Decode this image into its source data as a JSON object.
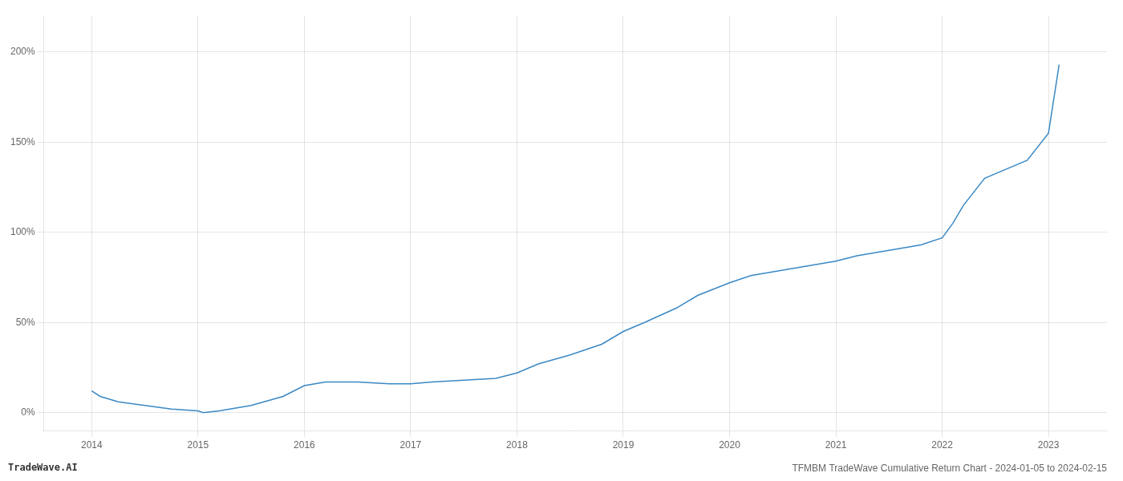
{
  "chart_data": {
    "type": "line",
    "title": "TFMBM TradeWave Cumulative Return Chart - 2024-01-05 to 2024-02-15",
    "annotations": [
      "TradeWave.AI"
    ],
    "color": "#3a88c4",
    "x": [
      2014.0,
      2014.08,
      2014.25,
      2014.5,
      2014.75,
      2015.0,
      2015.05,
      2015.2,
      2015.5,
      2015.8,
      2016.0,
      2016.2,
      2016.5,
      2016.8,
      2017.0,
      2017.2,
      2017.5,
      2017.8,
      2018.0,
      2018.2,
      2018.5,
      2018.8,
      2019.0,
      2019.2,
      2019.5,
      2019.7,
      2020.0,
      2020.2,
      2020.5,
      2020.8,
      2021.0,
      2021.2,
      2021.5,
      2021.8,
      2022.0,
      2022.1,
      2022.2,
      2022.4,
      2022.6,
      2022.8,
      2023.0,
      2023.1
    ],
    "values": [
      12,
      9,
      6,
      4,
      2,
      1,
      0,
      1,
      4,
      9,
      15,
      17,
      17,
      16,
      16,
      17,
      18,
      19,
      22,
      27,
      32,
      38,
      45,
      50,
      58,
      65,
      72,
      76,
      79,
      82,
      84,
      87,
      90,
      93,
      97,
      105,
      115,
      130,
      135,
      140,
      155,
      193
    ],
    "xlim": [
      2013.55,
      2023.55
    ],
    "xticks": [
      2014,
      2015,
      2016,
      2017,
      2018,
      2019,
      2020,
      2021,
      2022,
      2023
    ],
    "ylim": [
      -10,
      220
    ],
    "yticks": [
      {
        "value": 0,
        "label": "0%"
      },
      {
        "value": 50,
        "label": "50%"
      },
      {
        "value": 100,
        "label": "100%"
      },
      {
        "value": 150,
        "label": "150%"
      },
      {
        "value": 200,
        "label": "200%"
      }
    ],
    "grid": true
  }
}
